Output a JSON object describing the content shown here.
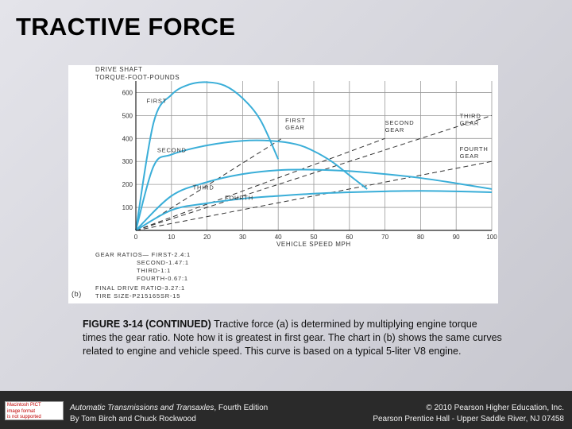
{
  "slide": {
    "title": "TRACTIVE FORCE"
  },
  "figure": {
    "panel_label": "(b)",
    "gear_ratios": [
      "GEAR RATIOS— FIRST-2.4:1",
      "SECOND-1.47:1",
      "THIRD-1:1",
      "FOURTH-0.67:1"
    ],
    "final_drive": "FINAL DRIVE RATIO-3.27:1",
    "tire_size": "TIRE SIZE-P215165SR-15"
  },
  "chart_data": {
    "type": "line",
    "ylabel_lines": [
      "DRIVE SHAFT",
      "TORQUE-FOOT-POUNDS"
    ],
    "xlabel": "VEHICLE SPEED  MPH",
    "xlim": [
      0,
      100
    ],
    "ylim": [
      0,
      650
    ],
    "x_ticks": [
      0,
      10,
      20,
      30,
      40,
      50,
      60,
      70,
      80,
      90,
      100
    ],
    "y_ticks": [
      100,
      200,
      300,
      400,
      500,
      600
    ],
    "grid": true,
    "series": [
      {
        "name": "FIRST",
        "style": "solid",
        "x": [
          0,
          5,
          10,
          15,
          20,
          25,
          30,
          35,
          40
        ],
        "y": [
          0,
          470,
          590,
          635,
          645,
          630,
          575,
          480,
          310
        ]
      },
      {
        "name": "SECOND",
        "style": "solid",
        "x": [
          0,
          5,
          10,
          20,
          30,
          38,
          45,
          50,
          55,
          60,
          65
        ],
        "y": [
          0,
          280,
          330,
          370,
          390,
          390,
          375,
          345,
          300,
          240,
          180
        ]
      },
      {
        "name": "THIRD",
        "style": "solid",
        "x": [
          0,
          10,
          20,
          30,
          40,
          50,
          60,
          70,
          80,
          90,
          100
        ],
        "y": [
          0,
          150,
          210,
          245,
          262,
          264,
          258,
          245,
          228,
          205,
          180
        ]
      },
      {
        "name": "FOURTH",
        "style": "solid",
        "x": [
          0,
          10,
          20,
          30,
          40,
          50,
          60,
          70,
          80,
          90,
          100
        ],
        "y": [
          0,
          88,
          118,
          138,
          150,
          160,
          166,
          170,
          172,
          170,
          166
        ]
      },
      {
        "name": "FIRST GEAR",
        "style": "dashed",
        "x": [
          0,
          41
        ],
        "y": [
          0,
          400
        ]
      },
      {
        "name": "SECOND GEAR",
        "style": "dashed",
        "x": [
          0,
          70
        ],
        "y": [
          0,
          400
        ]
      },
      {
        "name": "THIRD GEAR",
        "style": "dashed",
        "x": [
          0,
          100
        ],
        "y": [
          0,
          500
        ]
      },
      {
        "name": "FOURTH GEAR",
        "style": "dashed",
        "x": [
          0,
          100
        ],
        "y": [
          0,
          300
        ]
      }
    ],
    "annotations": [
      {
        "lines": [
          "FIRST"
        ],
        "x": 3,
        "y": 555
      },
      {
        "lines": [
          "FIRST",
          "GEAR"
        ],
        "x": 42,
        "y": 470
      },
      {
        "lines": [
          "SECOND",
          "GEAR"
        ],
        "x": 70,
        "y": 460
      },
      {
        "lines": [
          "THIRD",
          "GEAR"
        ],
        "x": 91,
        "y": 490
      },
      {
        "lines": [
          "SECOND"
        ],
        "x": 6,
        "y": 340
      },
      {
        "lines": [
          "FOURTH",
          "GEAR"
        ],
        "x": 91,
        "y": 345
      },
      {
        "lines": [
          "THIRD"
        ],
        "x": 16,
        "y": 178
      },
      {
        "lines": [
          "FOURTH"
        ],
        "x": 25,
        "y": 133
      }
    ]
  },
  "caption": {
    "label": "FIGURE 3-14 (CONTINUED)",
    "text": " Tractive force (a) is determined by multiplying engine torque times the gear ratio. Note how it is greatest in first gear. The chart in (b) shows the same curves related to engine and vehicle speed. This curve is based on a typical 5-liter V8 engine."
  },
  "footer": {
    "badge_lines": [
      "Macintosh PICT",
      "image format",
      "is not supported"
    ],
    "book_title": "Automatic Transmissions and Transaxles",
    "book_edition": ", Fourth Edition",
    "authors": "By Tom Birch and Chuck Rockwood",
    "copyright": "© 2010 Pearson Higher Education, Inc.",
    "publisher": "Pearson Prentice Hall - Upper Saddle River, NJ 07458"
  },
  "colors": {
    "curve": "#3aaed8",
    "dashed": "#333333",
    "grid": "#9a9a9a",
    "footer_bg": "#2a2a2a"
  }
}
